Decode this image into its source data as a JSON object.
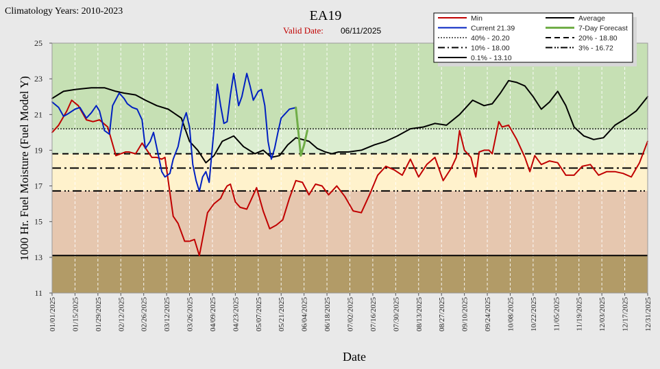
{
  "header": {
    "climatology": "Climatology Years: 2010-2023",
    "title": "EA19",
    "valid_label": "Valid Date:",
    "valid_date": "06/11/2025"
  },
  "colors": {
    "min": "#c00000",
    "average": "#000000",
    "current": "#0020c0",
    "forecast": "#70ad47",
    "band_green_dark": "#c6e0b4",
    "band_green_light": "#dbedd0",
    "band_yellow": "#fff2cc",
    "band_tan": "#e6c7af",
    "band_brown": "#b29b67"
  },
  "chart_data": {
    "type": "line",
    "xlabel": "Date",
    "ylabel": "1000 Hr. Fuel Moisture  (Fuel Model Y)",
    "ylim": [
      11,
      25
    ],
    "yticks": [
      11,
      13,
      15,
      17,
      19,
      21,
      23,
      25
    ],
    "xlim": [
      "01/01/2025",
      "12/31/2025"
    ],
    "xtick_labels": [
      "01/01/2025",
      "01/15/2025",
      "01/29/2025",
      "02/12/2025",
      "02/26/2025",
      "03/12/2025",
      "03/26/2025",
      "04/09/2025",
      "04/23/2025",
      "05/07/2025",
      "05/21/2025",
      "06/04/2025",
      "06/18/2025",
      "07/02/2025",
      "07/16/2025",
      "07/30/2025",
      "08/13/2025",
      "08/27/2025",
      "09/10/2025",
      "09/24/2025",
      "10/08/2025",
      "10/22/2025",
      "11/05/2025",
      "11/19/2025",
      "12/03/2025",
      "12/17/2025",
      "12/31/2025"
    ],
    "legend_position": "top-right",
    "legend": [
      {
        "label": "Min",
        "key": "min",
        "style": "solid"
      },
      {
        "label": "Average",
        "key": "avg",
        "style": "solid"
      },
      {
        "label": "Current 21.39",
        "key": "current",
        "style": "solid"
      },
      {
        "label": "7-Day Forecast",
        "key": "forecast",
        "style": "solid"
      },
      {
        "label": "40% -  20.20",
        "key": "p40",
        "style": "dotted"
      },
      {
        "label": "20% -  18.80",
        "key": "p20",
        "style": "dashed"
      },
      {
        "label": "10% -  18.00",
        "key": "p10",
        "style": "dashdot"
      },
      {
        "label": "3% -  16.72",
        "key": "p3",
        "style": "dashdotdot"
      },
      {
        "label": "0.1% -  13.10",
        "key": "p01",
        "style": "solid"
      }
    ],
    "thresholds": [
      {
        "name": "40%",
        "value": 20.2
      },
      {
        "name": "20%",
        "value": 18.8
      },
      {
        "name": "10%",
        "value": 18.0
      },
      {
        "name": "3%",
        "value": 16.72
      },
      {
        "name": "0.1%",
        "value": 13.1
      }
    ],
    "series": [
      {
        "name": "Average",
        "key": "avg",
        "x": [
          1,
          8,
          15,
          25,
          33,
          40,
          45,
          52,
          58,
          65,
          72,
          80,
          85,
          90,
          95,
          100,
          105,
          112,
          118,
          125,
          130,
          135,
          140,
          145,
          150,
          158,
          163,
          168,
          172,
          176,
          182,
          190,
          198,
          205,
          212,
          220,
          228,
          235,
          242,
          250,
          258,
          265,
          270,
          275,
          280,
          285,
          290,
          295,
          300,
          305,
          310,
          315,
          320,
          326,
          332,
          338,
          345,
          352,
          358,
          365
        ],
        "y": [
          21.9,
          22.3,
          22.4,
          22.5,
          22.5,
          22.3,
          22.2,
          22.1,
          21.8,
          21.5,
          21.3,
          20.8,
          19.5,
          19.0,
          18.3,
          18.7,
          19.5,
          19.8,
          19.2,
          18.8,
          19.0,
          18.6,
          18.7,
          19.3,
          19.7,
          19.5,
          19.1,
          18.9,
          18.8,
          18.9,
          18.9,
          19.0,
          19.3,
          19.5,
          19.8,
          20.2,
          20.3,
          20.5,
          20.4,
          21.0,
          21.8,
          21.5,
          21.6,
          22.2,
          22.9,
          22.8,
          22.6,
          22.0,
          21.3,
          21.7,
          22.3,
          21.5,
          20.3,
          19.8,
          19.6,
          19.7,
          20.4,
          20.8,
          21.2,
          22.0
        ]
      },
      {
        "name": "Min",
        "key": "min",
        "x": [
          1,
          5,
          10,
          13,
          17,
          22,
          26,
          30,
          35,
          40,
          43,
          46,
          48,
          52,
          56,
          62,
          65,
          68,
          70,
          75,
          78,
          82,
          85,
          88,
          91,
          96,
          100,
          104,
          106,
          108,
          110,
          113,
          116,
          120,
          123,
          126,
          130,
          134,
          138,
          142,
          146,
          150,
          154,
          158,
          162,
          166,
          170,
          175,
          180,
          185,
          190,
          195,
          200,
          205,
          210,
          215,
          220,
          225,
          230,
          235,
          240,
          245,
          248,
          250,
          253,
          257,
          260,
          262,
          265,
          268,
          270,
          274,
          276,
          280,
          285,
          290,
          293,
          296,
          300,
          305,
          310,
          315,
          320,
          325,
          330,
          335,
          340,
          345,
          350,
          355,
          360,
          365
        ],
        "y": [
          20.0,
          20.4,
          21.2,
          21.8,
          21.5,
          20.7,
          20.6,
          20.7,
          20.3,
          18.7,
          18.8,
          18.9,
          18.9,
          18.8,
          19.4,
          18.6,
          18.6,
          18.5,
          18.6,
          15.3,
          14.9,
          13.9,
          13.9,
          14.0,
          13.1,
          15.5,
          16.0,
          16.3,
          16.7,
          17.0,
          17.1,
          16.1,
          15.8,
          15.7,
          16.3,
          16.9,
          15.6,
          14.6,
          14.8,
          15.1,
          16.3,
          17.3,
          17.2,
          16.5,
          17.1,
          17.0,
          16.5,
          17.0,
          16.4,
          15.6,
          15.5,
          16.5,
          17.6,
          18.1,
          17.9,
          17.6,
          18.5,
          17.5,
          18.2,
          18.6,
          17.3,
          18.0,
          18.6,
          20.1,
          19.0,
          18.6,
          17.5,
          18.9,
          19.0,
          19.0,
          18.8,
          20.6,
          20.3,
          20.4,
          19.6,
          18.6,
          17.8,
          18.7,
          18.2,
          18.4,
          18.3,
          17.6,
          17.6,
          18.1,
          18.2,
          17.6,
          17.8,
          17.8,
          17.7,
          17.5,
          18.3,
          19.5
        ]
      },
      {
        "name": "Current",
        "key": "current",
        "x": [
          1,
          5,
          8,
          10,
          15,
          18,
          22,
          25,
          28,
          30,
          33,
          36,
          38,
          42,
          45,
          47,
          50,
          53,
          56,
          58,
          61,
          63,
          66,
          68,
          70,
          73,
          75,
          78,
          81,
          83,
          85,
          87,
          89,
          91,
          93,
          95,
          97,
          100,
          102,
          104,
          106,
          108,
          110,
          112,
          115,
          117,
          120,
          122,
          124,
          127,
          129,
          131,
          133,
          135,
          137,
          139,
          141,
          143,
          146,
          150
        ],
        "y": [
          21.7,
          21.4,
          20.9,
          21.0,
          21.3,
          21.4,
          20.8,
          21.1,
          21.5,
          21.2,
          20.1,
          19.9,
          21.5,
          22.2,
          21.9,
          21.6,
          21.4,
          21.3,
          20.7,
          19.1,
          19.5,
          20.0,
          18.7,
          17.8,
          17.5,
          17.7,
          18.5,
          19.2,
          20.6,
          21.1,
          20.3,
          18.2,
          17.3,
          16.7,
          17.5,
          17.8,
          17.2,
          20.2,
          22.7,
          21.5,
          20.5,
          20.6,
          22.1,
          23.3,
          21.5,
          22.0,
          23.3,
          22.6,
          21.8,
          22.3,
          22.4,
          21.5,
          19.5,
          18.5,
          19.1,
          20.0,
          20.8,
          21.0,
          21.3,
          21.39
        ]
      },
      {
        "name": "7-Day Forecast",
        "key": "forecast",
        "x": [
          150,
          151,
          152,
          153,
          154,
          155,
          157
        ],
        "y": [
          21.39,
          20.5,
          19.6,
          18.7,
          19.0,
          19.3,
          20.1
        ]
      }
    ]
  }
}
